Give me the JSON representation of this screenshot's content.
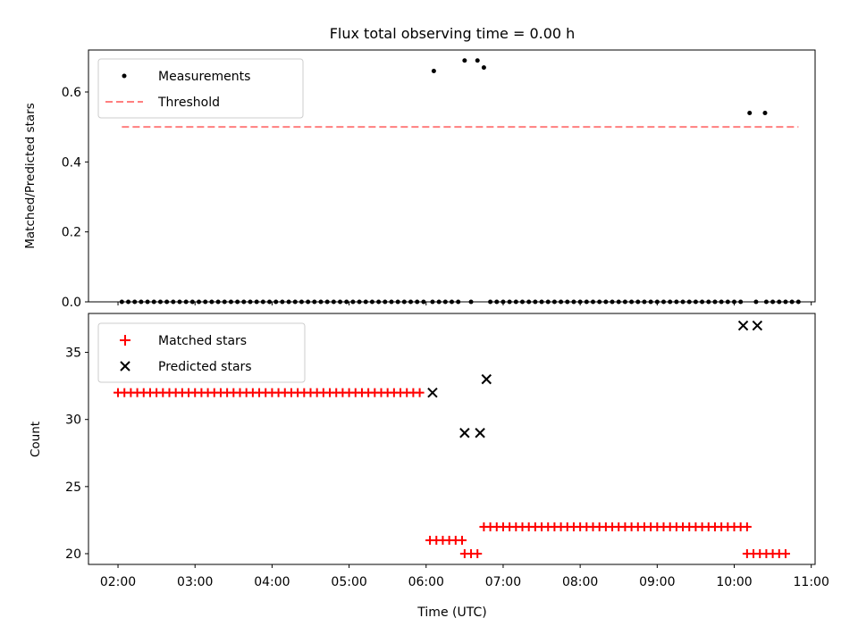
{
  "figure_title": "Flux total observing time = 0.00 h",
  "colors": {
    "measurement": "#000000",
    "threshold": "#ff7f7f",
    "matched": "#ff0000",
    "predicted": "#000000"
  },
  "chart_data": [
    {
      "type": "scatter",
      "title": "Flux total observing time = 0.00 h",
      "xlabel": "",
      "ylabel": "Matched/Predicted stars",
      "xlim": [
        "01:37",
        "11:03"
      ],
      "ylim": [
        0,
        0.72
      ],
      "yticks": [
        "0.0",
        "0.2",
        "0.4",
        "0.6"
      ],
      "ytick_values": [
        0,
        0.2,
        0.4,
        0.6
      ],
      "grid": false,
      "legend_position": "upper-left",
      "x_marker_times": [
        "02:00",
        "03:00",
        "04:00",
        "05:00",
        "06:00",
        "07:00",
        "08:00",
        "09:00",
        "10:00",
        "11:00"
      ],
      "series": [
        {
          "name": "Measurements",
          "kind": "points",
          "marker": "dot",
          "points": [
            [
              "06:06",
              0.66
            ],
            [
              "06:30",
              0.69
            ],
            [
              "06:40",
              0.69
            ],
            [
              "06:45",
              0.67
            ],
            [
              "10:12",
              0.54
            ],
            [
              "10:24",
              0.54
            ]
          ],
          "zero_ranges": [
            [
              "02:03",
              "05:59",
              5
            ],
            [
              "06:05",
              "06:29",
              5
            ],
            [
              "06:35",
              "06:35",
              1
            ],
            [
              "06:50",
              "10:05",
              5
            ],
            [
              "10:17",
              "10:17",
              1
            ],
            [
              "10:25",
              "10:50",
              5
            ]
          ]
        },
        {
          "name": "Threshold",
          "kind": "line",
          "style": "dashed",
          "points": [
            [
              "02:03",
              0.5
            ],
            [
              "10:50",
              0.5
            ]
          ]
        }
      ]
    },
    {
      "type": "scatter",
      "xlabel": "Time (UTC)",
      "ylabel": "Count",
      "xlim": [
        "01:37",
        "11:03"
      ],
      "ylim": [
        19.2,
        37.9
      ],
      "yticks": [
        "20",
        "25",
        "30",
        "35"
      ],
      "ytick_values": [
        20,
        25,
        30,
        35
      ],
      "xticks": [
        "02:00",
        "03:00",
        "04:00",
        "05:00",
        "06:00",
        "07:00",
        "08:00",
        "09:00",
        "10:00",
        "11:00"
      ],
      "grid": false,
      "legend_position": "upper-left",
      "series": [
        {
          "name": "Matched stars",
          "marker": "plus",
          "runs": [
            [
              "02:00",
              "05:59",
              5,
              32
            ],
            [
              "06:03",
              "06:28",
              5,
              21
            ],
            [
              "06:30",
              "06:40",
              5,
              20
            ],
            [
              "06:45",
              "10:10",
              5,
              22
            ],
            [
              "10:10",
              "10:40",
              5,
              20
            ]
          ]
        },
        {
          "name": "Predicted stars",
          "marker": "x",
          "points": [
            [
              "06:05",
              32
            ],
            [
              "06:30",
              29
            ],
            [
              "06:42",
              29
            ],
            [
              "06:47",
              33
            ],
            [
              "10:07",
              37
            ],
            [
              "10:18",
              37
            ]
          ]
        }
      ]
    }
  ]
}
